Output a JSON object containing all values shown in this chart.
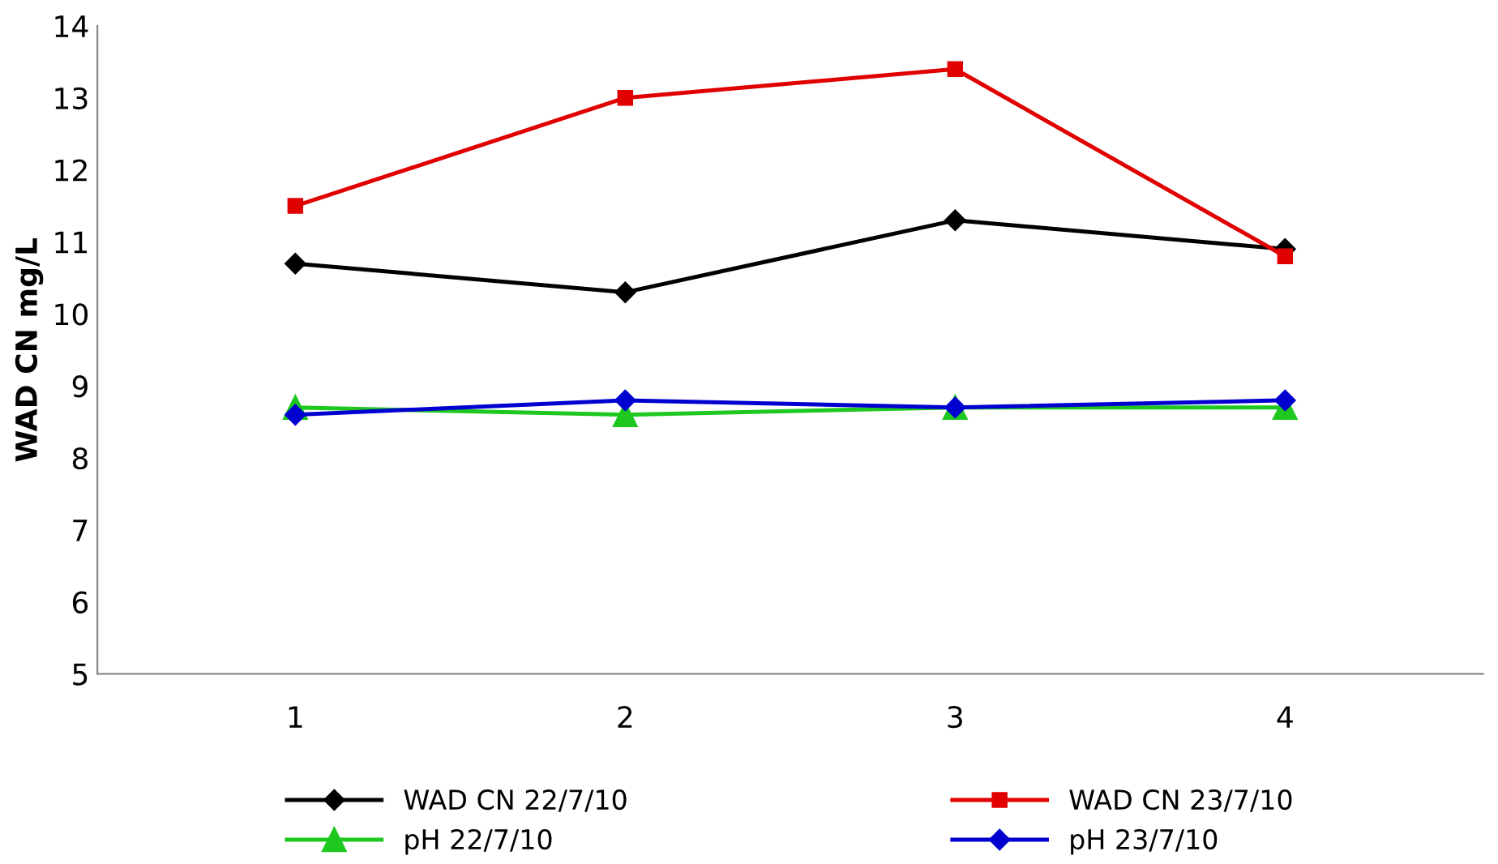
{
  "chart_data": {
    "type": "line",
    "ylabel": "WAD CN mg/L",
    "categories": [
      "1",
      "2",
      "3",
      "4"
    ],
    "series": [
      {
        "name": "WAD CN 22/7/10",
        "color": "#000000",
        "marker": "diamond",
        "values": [
          10.7,
          10.3,
          11.3,
          10.9
        ]
      },
      {
        "name": "WAD CN 23/7/10",
        "color": "#e00000",
        "marker": "square",
        "values": [
          11.5,
          13.0,
          13.4,
          10.8
        ]
      },
      {
        "name": "pH 22/7/10",
        "color": "#1ec81e",
        "marker": "triangle",
        "values": [
          8.7,
          8.6,
          8.7,
          8.7
        ]
      },
      {
        "name": "pH 23/7/10",
        "color": "#0000d0",
        "marker": "diamond",
        "values": [
          8.6,
          8.8,
          8.7,
          8.8
        ]
      }
    ],
    "ylim": [
      5,
      14
    ],
    "yticks": [
      5,
      6,
      7,
      8,
      9,
      10,
      11,
      12,
      13,
      14
    ],
    "grid": false,
    "legend": "bottom"
  }
}
